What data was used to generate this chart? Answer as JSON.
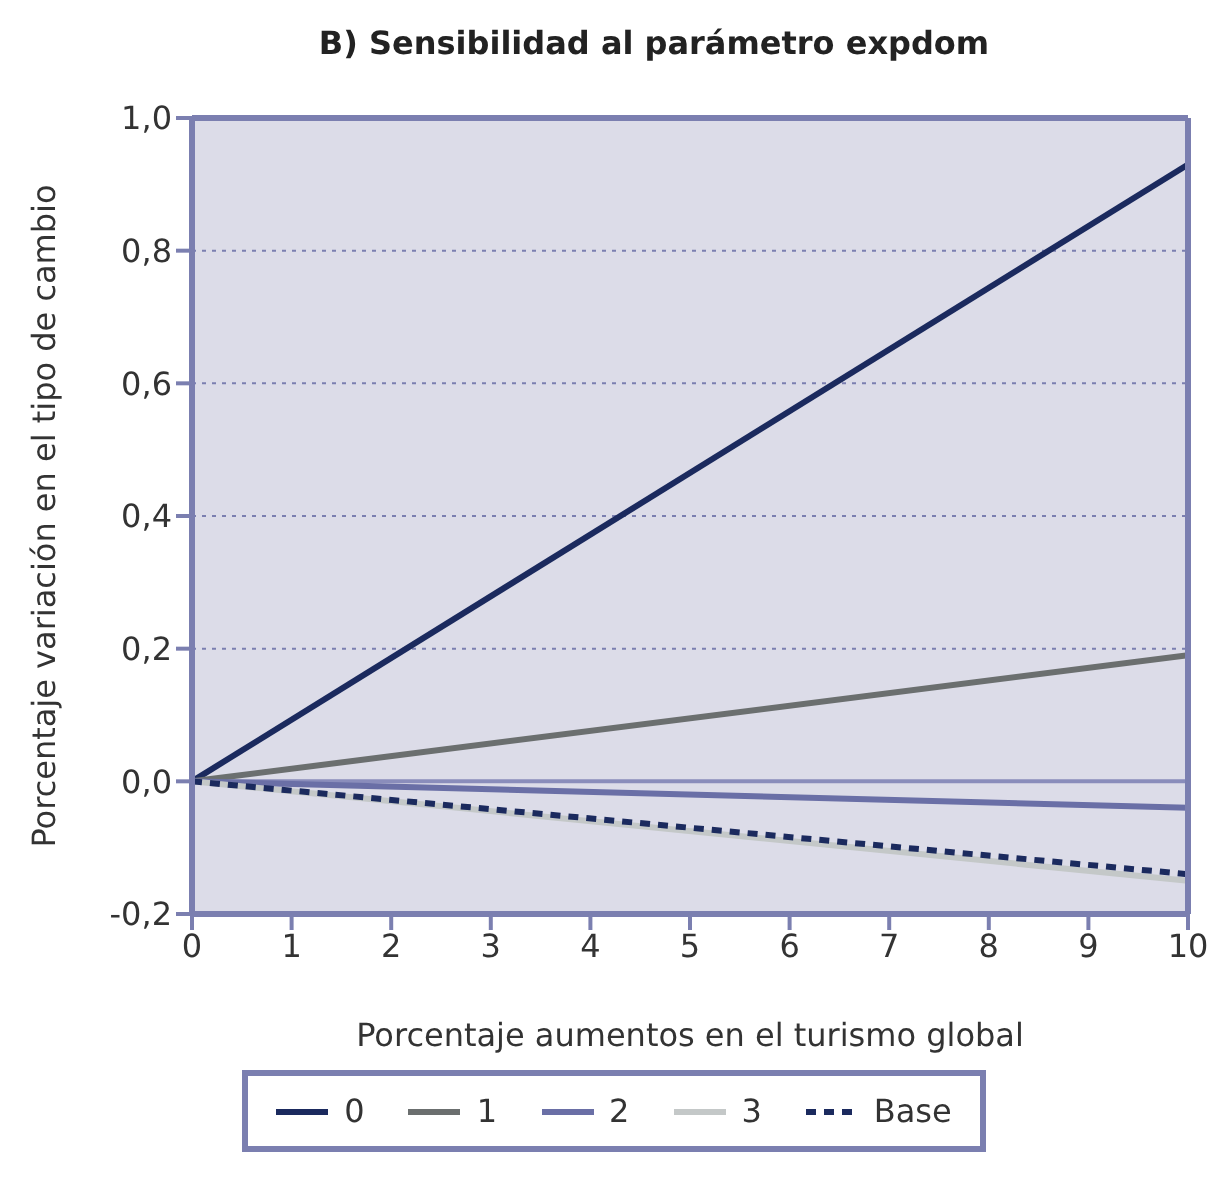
{
  "chart_data": {
    "type": "line",
    "title": "B) Sensibilidad al parámetro expdom",
    "xlabel": "Porcentaje aumentos en el turismo global",
    "ylabel": "Porcentaje variación en el tipo de cambio",
    "x": [
      0,
      10
    ],
    "series": [
      {
        "name": "0",
        "color": "#1b2a5e",
        "values": [
          0,
          0.93
        ],
        "line_style": "solid"
      },
      {
        "name": "1",
        "color": "#6b6f6f",
        "values": [
          0,
          0.19
        ],
        "line_style": "solid"
      },
      {
        "name": "2",
        "color": "#6a6fa6",
        "values": [
          0,
          -0.04
        ],
        "line_style": "solid"
      },
      {
        "name": "3",
        "color": "#c4c8c8",
        "values": [
          0,
          -0.15
        ],
        "line_style": "solid"
      },
      {
        "name": "Base",
        "color": "#1b2a5e",
        "values": [
          0,
          -0.14
        ],
        "line_style": "dashed"
      }
    ],
    "xlim": [
      0,
      10
    ],
    "xticks": [
      0,
      1,
      2,
      3,
      4,
      5,
      6,
      7,
      8,
      9,
      10
    ],
    "ylim": [
      -0.2,
      1.0
    ],
    "yticks": [
      {
        "value": -0.2,
        "label": "-0,2"
      },
      {
        "value": 0,
        "label": "0,0"
      },
      {
        "value": 0.2,
        "label": "0,2"
      },
      {
        "value": 0.4,
        "label": "0,4"
      },
      {
        "value": 0.6,
        "label": "0,6"
      },
      {
        "value": 0.8,
        "label": "0,8"
      },
      {
        "value": 1.0,
        "label": "1,0"
      }
    ],
    "ref_lines": [
      {
        "axis": "y",
        "value": 0,
        "label": null,
        "color": "#8a8dbb",
        "line_style": "solid"
      }
    ],
    "grid": "y",
    "legend": "bottom",
    "marker": "none"
  }
}
